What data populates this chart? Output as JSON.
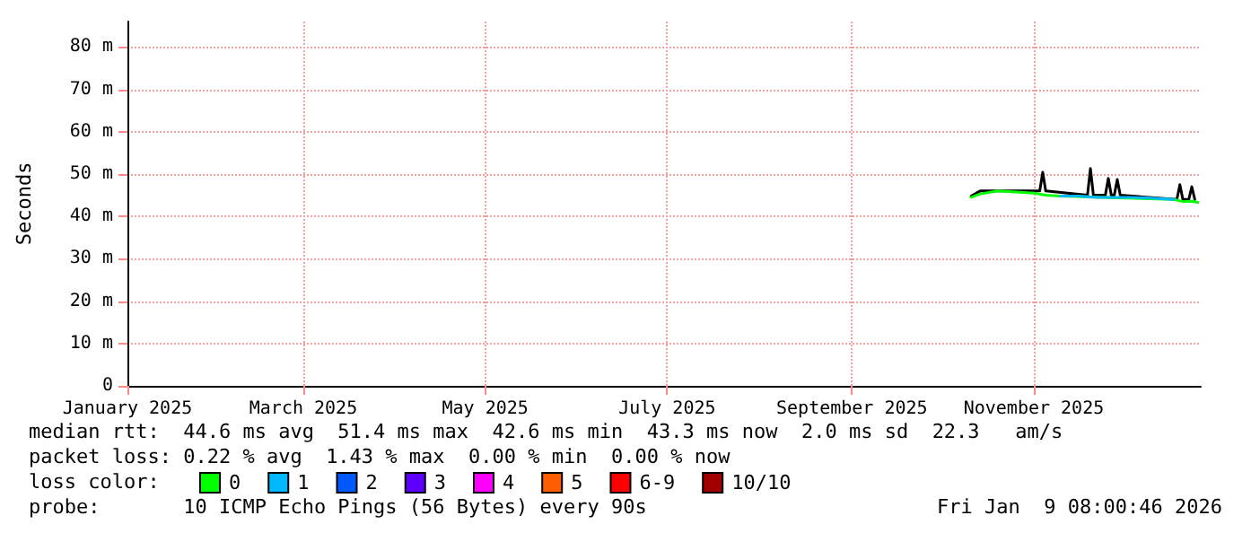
{
  "chart_data": {
    "type": "line",
    "ylabel": "Seconds",
    "legend_title": "loss color:",
    "legend": "bottom left",
    "grid": true,
    "marker": "none",
    "line_style": "solid",
    "xlim": [
      "2025-01-01",
      "2025-12-27"
    ],
    "xticks": [
      {
        "value": "2025-01-01",
        "label": "January 2025"
      },
      {
        "value": "2025-03-01",
        "label": "March 2025"
      },
      {
        "value": "2025-05-01",
        "label": "May 2025"
      },
      {
        "value": "2025-07-01",
        "label": "July 2025"
      },
      {
        "value": "2025-09-01",
        "label": "September 2025"
      },
      {
        "value": "2025-11-01",
        "label": "November 2025"
      }
    ],
    "ylim": [
      0,
      86
    ],
    "yticks": [
      0,
      {
        "value": 10,
        "label": "10 m"
      },
      {
        "value": 20,
        "label": "20 m"
      },
      {
        "value": 30,
        "label": "30 m"
      },
      {
        "value": 40,
        "label": "40 m"
      },
      {
        "value": 50,
        "label": "50 m"
      },
      {
        "value": 60,
        "label": "60 m"
      },
      {
        "value": 70,
        "label": "70 m"
      },
      {
        "value": 80,
        "label": "80 m"
      }
    ],
    "series": [
      {
        "color": "#000000",
        "x": [
          "2025-10-11",
          "2025-10-14",
          "2025-11-03",
          "2025-11-04",
          "2025-11-05",
          "2025-11-19",
          "2025-11-20",
          "2025-11-21",
          "2025-11-25",
          "2025-11-26",
          "2025-11-27",
          "2025-11-28",
          "2025-11-29",
          "2025-11-30",
          "2025-12-19",
          "2025-12-20",
          "2025-12-21",
          "2025-12-23",
          "2025-12-24",
          "2025-12-25"
        ],
        "values": [
          44.8,
          46,
          46,
          50.4,
          46,
          45,
          51.3,
          45,
          45,
          49,
          45,
          45,
          48.7,
          45,
          44,
          47.5,
          44,
          44,
          47,
          44
        ]
      },
      {
        "name": "0",
        "color": "#00ff00",
        "x": [
          "2025-10-11",
          "2025-10-14",
          "2025-10-20",
          "2025-11-01",
          "2025-11-05",
          "2025-11-10",
          "2025-12-18",
          "2025-12-21",
          "2025-12-24",
          "2025-12-26"
        ],
        "values": [
          44.5,
          45.3,
          46,
          45.5,
          45,
          44.8,
          44,
          43.5,
          43.6,
          43.3
        ]
      },
      {
        "name": "1",
        "color": "#00b8ff",
        "x": [
          "2025-11-10",
          "2025-11-16",
          "2025-11-22",
          "2025-12-04",
          "2025-12-10",
          "2025-12-18"
        ],
        "values": [
          44.8,
          44.8,
          44.5,
          44.5,
          44.3,
          44
        ]
      },
      {
        "name": "2",
        "color": "#0059ff"
      },
      {
        "name": "3",
        "color": "#5e00ff"
      },
      {
        "name": "4",
        "color": "#ff00ff"
      },
      {
        "name": "5",
        "color": "#ff5e00"
      },
      {
        "name": "6-9",
        "color": "#ff0000"
      },
      {
        "name": "10/10",
        "color": "#a10000"
      }
    ],
    "annotations": [
      "median rtt:  44.6 ms avg  51.4 ms max  42.6 ms min  43.3 ms now  2.0 ms sd  22.3   am/s",
      "packet loss: 0.22 % avg  1.43 % max  0.00 % min  0.00 % now",
      "probe:       10 ICMP Echo Pings (56 Bytes) every 90s",
      "Fri Jan  9 08:00:46 2026"
    ]
  }
}
